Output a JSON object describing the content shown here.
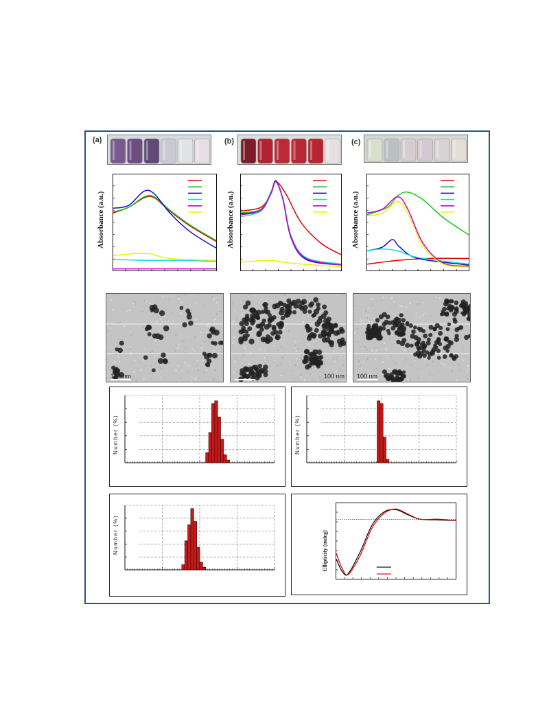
{
  "panels": {
    "a": {
      "label": "(a)"
    },
    "b": {
      "label": "(b)"
    },
    "c": {
      "label": "(c)"
    }
  },
  "uv": {
    "ylabel": "Absorbance (a.u.)",
    "a": {
      "legend_colors": [
        "#e00000",
        "#19c819",
        "#1010c0",
        "#19d8e0",
        "#c800c8",
        "#f0f000"
      ]
    },
    "b": {
      "legend_colors": [
        "#e00000",
        "#19c819",
        "#1010c0",
        "#19d8e0",
        "#c800c8",
        "#f0f000"
      ]
    },
    "c": {
      "legend_colors": [
        "#e00000",
        "#19c819",
        "#1010c0",
        "#19d8e0",
        "#c800c8",
        "#f0f000"
      ]
    }
  },
  "tem": {
    "a": {
      "scale": "100 nm"
    },
    "b": {
      "scale": "100 nm"
    },
    "c": {
      "scale": "100 nm"
    }
  },
  "dls": {
    "ylabel": "Number (%)"
  },
  "cd": {
    "ylabel": "Ellipticity (mdeg)"
  },
  "chart_data": [
    {
      "type": "line",
      "panel": "a-uv",
      "series": [
        {
          "color": "#e00000",
          "points": [
            [
              0,
              0.6
            ],
            [
              0.15,
              0.66
            ],
            [
              0.3,
              0.76
            ],
            [
              0.4,
              0.76
            ],
            [
              0.55,
              0.62
            ],
            [
              0.75,
              0.46
            ],
            [
              1,
              0.3
            ]
          ]
        },
        {
          "color": "#19c819",
          "points": [
            [
              0,
              0.61
            ],
            [
              0.15,
              0.66
            ],
            [
              0.3,
              0.77
            ],
            [
              0.4,
              0.77
            ],
            [
              0.55,
              0.63
            ],
            [
              0.75,
              0.47
            ],
            [
              1,
              0.31
            ]
          ]
        },
        {
          "color": "#1010c0",
          "points": [
            [
              0,
              0.65
            ],
            [
              0.15,
              0.68
            ],
            [
              0.3,
              0.83
            ],
            [
              0.4,
              0.8
            ],
            [
              0.55,
              0.6
            ],
            [
              0.75,
              0.4
            ],
            [
              1,
              0.23
            ]
          ]
        },
        {
          "color": "#19d8e0",
          "points": [
            [
              0,
              0.11
            ],
            [
              0.3,
              0.1
            ],
            [
              0.6,
              0.1
            ],
            [
              1,
              0.09
            ]
          ]
        },
        {
          "color": "#c800c8",
          "points": [
            [
              0,
              0.01
            ],
            [
              0.5,
              0.01
            ],
            [
              1,
              0.01
            ]
          ]
        },
        {
          "color": "#f0f000",
          "points": [
            [
              0,
              0.15
            ],
            [
              0.2,
              0.17
            ],
            [
              0.35,
              0.17
            ],
            [
              0.55,
              0.12
            ],
            [
              1,
              0.1
            ]
          ]
        }
      ]
    },
    {
      "type": "line",
      "panel": "b-uv",
      "series": [
        {
          "color": "#e00000",
          "points": [
            [
              0,
              0.62
            ],
            [
              0.2,
              0.66
            ],
            [
              0.3,
              0.8
            ],
            [
              0.35,
              0.93
            ],
            [
              0.45,
              0.8
            ],
            [
              0.6,
              0.5
            ],
            [
              0.8,
              0.28
            ],
            [
              1,
              0.16
            ]
          ]
        },
        {
          "color": "#19c819",
          "points": [
            [
              0,
              0.6
            ],
            [
              0.2,
              0.64
            ],
            [
              0.3,
              0.82
            ],
            [
              0.35,
              0.94
            ],
            [
              0.42,
              0.75
            ],
            [
              0.5,
              0.35
            ],
            [
              0.65,
              0.12
            ],
            [
              1,
              0.05
            ]
          ]
        },
        {
          "color": "#1010c0",
          "points": [
            [
              0,
              0.59
            ],
            [
              0.2,
              0.63
            ],
            [
              0.3,
              0.81
            ],
            [
              0.35,
              0.94
            ],
            [
              0.42,
              0.74
            ],
            [
              0.5,
              0.34
            ],
            [
              0.65,
              0.11
            ],
            [
              1,
              0.05
            ]
          ]
        },
        {
          "color": "#19d8e0",
          "points": [
            [
              0,
              0.56
            ],
            [
              0.2,
              0.62
            ],
            [
              0.3,
              0.8
            ],
            [
              0.35,
              0.93
            ],
            [
              0.42,
              0.75
            ],
            [
              0.5,
              0.36
            ],
            [
              0.65,
              0.13
            ],
            [
              1,
              0.06
            ]
          ]
        },
        {
          "color": "#c800c8",
          "points": [
            [
              0,
              0.58
            ],
            [
              0.2,
              0.63
            ],
            [
              0.3,
              0.81
            ],
            [
              0.35,
              0.93
            ],
            [
              0.42,
              0.74
            ],
            [
              0.5,
              0.35
            ],
            [
              0.65,
              0.12
            ],
            [
              1,
              0.05
            ]
          ]
        },
        {
          "color": "#f0f000",
          "points": [
            [
              0,
              0.08
            ],
            [
              0.3,
              0.1
            ],
            [
              0.5,
              0.07
            ],
            [
              1,
              0.03
            ]
          ]
        }
      ]
    },
    {
      "type": "line",
      "panel": "c-uv",
      "series": [
        {
          "color": "#e00000",
          "points": [
            [
              0,
              0.06
            ],
            [
              0.3,
              0.1
            ],
            [
              0.6,
              0.12
            ],
            [
              1,
              0.12
            ]
          ]
        },
        {
          "color": "#19c819",
          "points": [
            [
              0,
              0.58
            ],
            [
              0.2,
              0.66
            ],
            [
              0.3,
              0.78
            ],
            [
              0.4,
              0.82
            ],
            [
              0.55,
              0.74
            ],
            [
              0.75,
              0.55
            ],
            [
              1,
              0.37
            ]
          ]
        },
        {
          "color": "#1010c0",
          "points": [
            [
              0,
              0.2
            ],
            [
              0.15,
              0.24
            ],
            [
              0.25,
              0.32
            ],
            [
              0.32,
              0.24
            ],
            [
              0.5,
              0.12
            ],
            [
              1,
              0.05
            ]
          ]
        },
        {
          "color": "#19d8e0",
          "points": [
            [
              0,
              0.2
            ],
            [
              0.15,
              0.22
            ],
            [
              0.3,
              0.2
            ],
            [
              0.5,
              0.13
            ],
            [
              1,
              0.06
            ]
          ]
        },
        {
          "color": "#c800c8",
          "points": [
            [
              0,
              0.6
            ],
            [
              0.15,
              0.64
            ],
            [
              0.3,
              0.77
            ],
            [
              0.4,
              0.64
            ],
            [
              0.55,
              0.28
            ],
            [
              0.75,
              0.07
            ],
            [
              1,
              0.04
            ]
          ]
        },
        {
          "color": "#f0f000",
          "points": [
            [
              0,
              0.57
            ],
            [
              0.15,
              0.6
            ],
            [
              0.3,
              0.72
            ],
            [
              0.4,
              0.6
            ],
            [
              0.55,
              0.25
            ],
            [
              0.75,
              0.06
            ],
            [
              1,
              0.03
            ]
          ]
        }
      ]
    },
    {
      "type": "bar",
      "panel": "dls-a",
      "values": [
        [
          0.55,
          0.15
        ],
        [
          0.57,
          0.45
        ],
        [
          0.59,
          0.88
        ],
        [
          0.61,
          0.92
        ],
        [
          0.63,
          0.68
        ],
        [
          0.65,
          0.35
        ],
        [
          0.67,
          0.12
        ],
        [
          0.69,
          0.04
        ]
      ]
    },
    {
      "type": "bar",
      "panel": "dls-b",
      "values": [
        [
          0.48,
          0.92
        ],
        [
          0.5,
          0.88
        ],
        [
          0.52,
          0.38
        ],
        [
          0.54,
          0.05
        ]
      ]
    },
    {
      "type": "bar",
      "panel": "dls-c",
      "values": [
        [
          0.39,
          0.08
        ],
        [
          0.41,
          0.45
        ],
        [
          0.43,
          0.7
        ],
        [
          0.45,
          0.95
        ],
        [
          0.47,
          0.75
        ],
        [
          0.49,
          0.35
        ],
        [
          0.51,
          0.12
        ],
        [
          0.53,
          0.04
        ]
      ]
    },
    {
      "type": "line",
      "panel": "cd",
      "series": [
        {
          "color": "#000000",
          "points": [
            [
              0,
              0.25
            ],
            [
              0.05,
              0.08
            ],
            [
              0.1,
              0.05
            ],
            [
              0.2,
              0.35
            ],
            [
              0.3,
              0.72
            ],
            [
              0.4,
              0.9
            ],
            [
              0.5,
              0.93
            ],
            [
              0.6,
              0.86
            ],
            [
              0.7,
              0.8
            ],
            [
              0.85,
              0.79
            ],
            [
              1,
              0.78
            ]
          ]
        },
        {
          "color": "#cc0000",
          "points": [
            [
              0,
              0.33
            ],
            [
              0.05,
              0.12
            ],
            [
              0.1,
              0.04
            ],
            [
              0.2,
              0.3
            ],
            [
              0.3,
              0.68
            ],
            [
              0.4,
              0.88
            ],
            [
              0.5,
              0.94
            ],
            [
              0.6,
              0.87
            ],
            [
              0.7,
              0.8
            ],
            [
              0.85,
              0.8
            ],
            [
              1,
              0.78
            ]
          ]
        }
      ],
      "legend_colors": [
        "#000000",
        "#cc0000"
      ]
    }
  ]
}
